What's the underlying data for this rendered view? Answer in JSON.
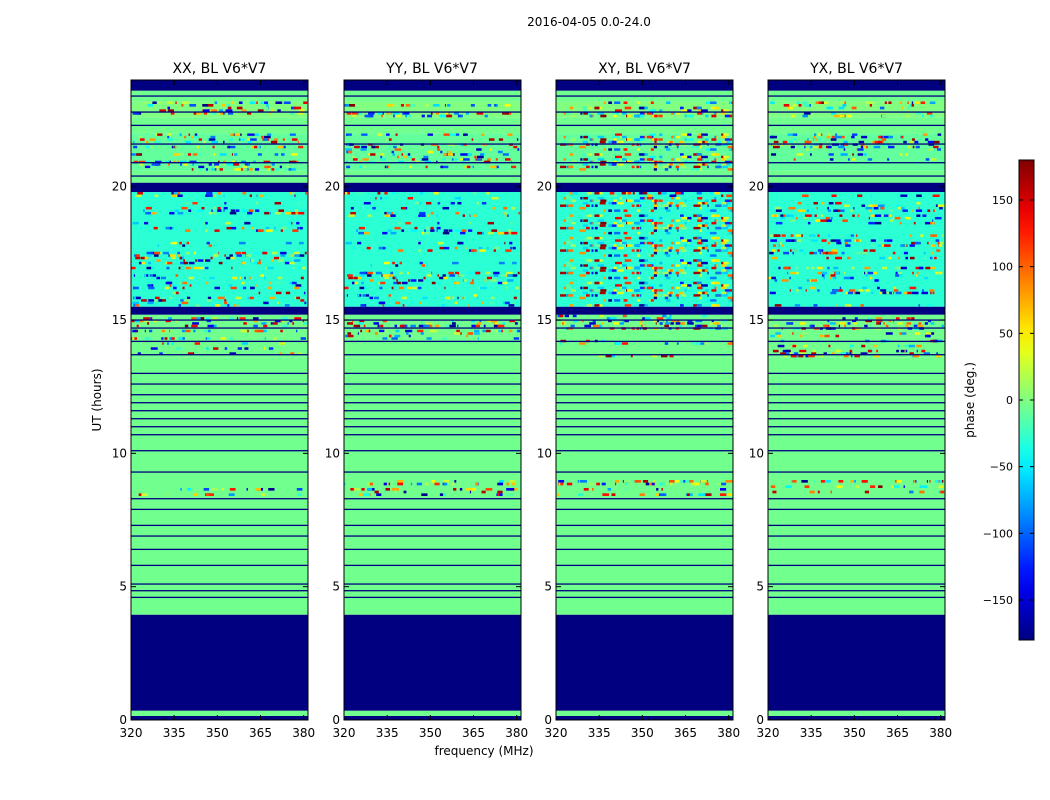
{
  "figure": {
    "suptitle": "2016-04-05 0.0-24.0"
  },
  "chart_data": {
    "type": "heatmap",
    "x": {
      "label": "frequency (MHz)",
      "range": [
        320,
        381.5
      ],
      "ticks": [
        320,
        335,
        350,
        365,
        380
      ],
      "tick_labels": [
        "320",
        "335",
        "350",
        "365",
        "380"
      ]
    },
    "y": {
      "label": "UT (hours)",
      "range": [
        0,
        24
      ],
      "ticks": [
        0,
        5,
        10,
        15,
        20
      ],
      "tick_labels": [
        "0",
        "5",
        "10",
        "15",
        "20"
      ]
    },
    "colorbar": {
      "label": "phase (deg.)",
      "range": [
        -180,
        180
      ],
      "ticks": [
        -150,
        -100,
        -50,
        0,
        50,
        100,
        150
      ],
      "tick_labels": [
        "−150",
        "−100",
        "−50",
        "0",
        "50",
        "100",
        "150"
      ],
      "colormap": "jet"
    },
    "panels": [
      {
        "title": "XX, BL V6*V7"
      },
      {
        "title": "YY, BL V6*V7"
      },
      {
        "title": "XY, BL V6*V7"
      },
      {
        "title": "YX, BL V6*V7"
      }
    ],
    "bands": [
      {
        "t0": 0.0,
        "t1": 0.15,
        "phase": -180,
        "kind": "solid"
      },
      {
        "t0": 0.15,
        "t1": 0.35,
        "phase": -5,
        "kind": "solid"
      },
      {
        "t0": 0.35,
        "t1": 3.95,
        "phase": -180,
        "kind": "solid"
      },
      {
        "t0": 3.95,
        "t1": 8.4,
        "phase": -5,
        "kind": "solid"
      },
      {
        "t0": 8.4,
        "t1": 9.0,
        "phase": -5,
        "kind": "noise"
      },
      {
        "t0": 9.0,
        "t1": 13.6,
        "phase": -5,
        "kind": "solid"
      },
      {
        "t0": 13.6,
        "t1": 15.2,
        "phase": -5,
        "kind": "noise"
      },
      {
        "t0": 15.2,
        "t1": 15.5,
        "phase": -180,
        "kind": "solid"
      },
      {
        "t0": 15.5,
        "t1": 19.8,
        "phase": -30,
        "kind": "noise"
      },
      {
        "t0": 19.8,
        "t1": 20.15,
        "phase": -180,
        "kind": "solid"
      },
      {
        "t0": 20.15,
        "t1": 20.6,
        "phase": -5,
        "kind": "solid"
      },
      {
        "t0": 20.6,
        "t1": 22.0,
        "phase": -10,
        "kind": "noise"
      },
      {
        "t0": 22.0,
        "t1": 22.6,
        "phase": -5,
        "kind": "solid"
      },
      {
        "t0": 22.6,
        "t1": 23.2,
        "phase": 0,
        "kind": "noise"
      },
      {
        "t0": 23.2,
        "t1": 23.6,
        "phase": -5,
        "kind": "solid"
      },
      {
        "t0": 23.6,
        "t1": 24.0,
        "phase": -180,
        "kind": "solid"
      }
    ],
    "flag_lines_ut": [
      0.9,
      1.3,
      1.6,
      2.0,
      2.4,
      2.8,
      3.2,
      3.7,
      4.6,
      4.85,
      5.1,
      5.8,
      6.4,
      6.9,
      7.3,
      7.9,
      8.3,
      9.3,
      10.1,
      10.7,
      11.0,
      11.3,
      11.6,
      11.9,
      12.2,
      12.6,
      13.0,
      13.7,
      14.2,
      14.7,
      15.0,
      20.4,
      20.9,
      21.6,
      22.3,
      22.8,
      23.4
    ]
  }
}
